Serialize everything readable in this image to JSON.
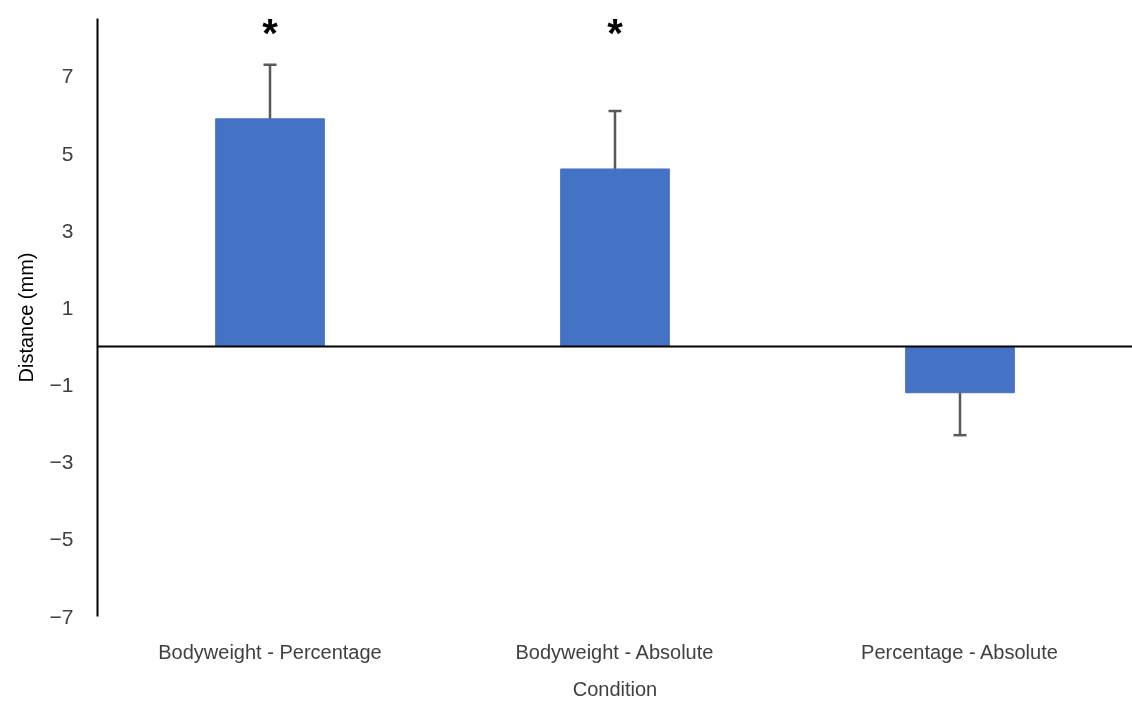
{
  "chart_data": {
    "type": "bar",
    "xlabel": "Condition",
    "ylabel": "Distance (mm)",
    "categories": [
      "Bodyweight - Percentage",
      "Bodyweight - Absolute",
      "Percentage - Absolute"
    ],
    "values": [
      5.9,
      4.6,
      -1.2
    ],
    "errors": [
      1.4,
      1.5,
      1.1
    ],
    "color": "#4472c4",
    "ylim": [
      -7,
      8.5
    ],
    "yticks": [
      -7,
      -5,
      -3,
      -1,
      1,
      3,
      5,
      7
    ],
    "grid": false,
    "annotations": [
      "*",
      "*"
    ]
  }
}
